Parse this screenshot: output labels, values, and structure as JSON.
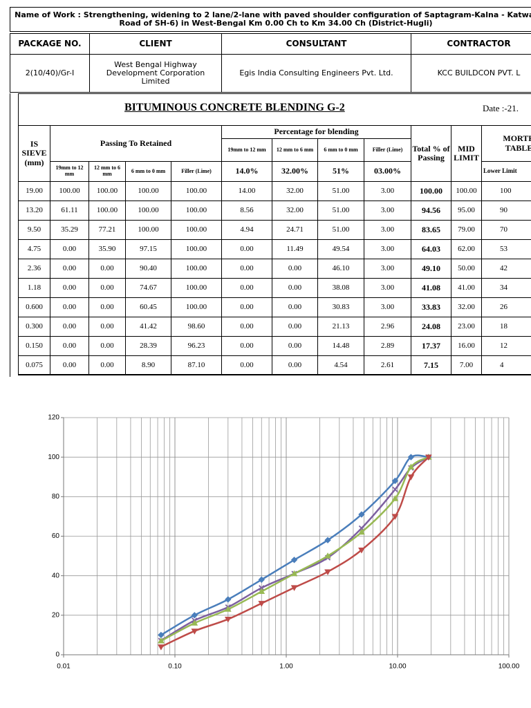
{
  "header": {
    "work": "Name of Work : Strengthening, widening to 2 lane/2-lane with paved shoulder configuration of Saptagram-Kalna - Katwa-Road of SH-6) in West-Bengal Km 0.00 Ch to Km 34.00 Ch (District-Hugli)",
    "columns": [
      "PACKAGE NO.",
      "CLIENT",
      "CONSULTANT",
      "CONTRACTOR"
    ],
    "values": [
      "2(10/40)/Gr-I",
      "West Bengal Highway Development Corporation Limited",
      "Egis India Consulting Engineers Pvt. Ltd.",
      "KCC BUILDCON PVT. L"
    ]
  },
  "table": {
    "title": "BITUMINOUS CONCRETE BLENDING G-2",
    "date": "Date :-21.",
    "head": {
      "sieve": "IS SIEVE (mm)",
      "passing": "Passing To Retained",
      "blending": "Percentage for blending",
      "total": "Total % of Passing",
      "mid": "MID LIMIT",
      "morth": "MORTH TABLE",
      "lower": "Lower Limit",
      "passing_fractions": [
        "19mm to 12 mm",
        "12 mm to 6 mm",
        "6 mm to 0 mm",
        "Filler (Lime)"
      ],
      "blend_fractions": [
        "19mm to 12 mm",
        "12 mm to 6 mm",
        "6 mm to 0 mm",
        "Filler (Lime)"
      ],
      "percents": [
        "14.0%",
        "32.00%",
        "51%",
        "03.00%"
      ]
    },
    "rows": [
      [
        "19.00",
        "100.00",
        "100.00",
        "100.00",
        "100.00",
        "14.00",
        "32.00",
        "51.00",
        "3.00",
        "100.00",
        "100.00",
        "100"
      ],
      [
        "13.20",
        "61.11",
        "100.00",
        "100.00",
        "100.00",
        "8.56",
        "32.00",
        "51.00",
        "3.00",
        "94.56",
        "95.00",
        "90"
      ],
      [
        "9.50",
        "35.29",
        "77.21",
        "100.00",
        "100.00",
        "4.94",
        "24.71",
        "51.00",
        "3.00",
        "83.65",
        "79.00",
        "70"
      ],
      [
        "4.75",
        "0.00",
        "35.90",
        "97.15",
        "100.00",
        "0.00",
        "11.49",
        "49.54",
        "3.00",
        "64.03",
        "62.00",
        "53"
      ],
      [
        "2.36",
        "0.00",
        "0.00",
        "90.40",
        "100.00",
        "0.00",
        "0.00",
        "46.10",
        "3.00",
        "49.10",
        "50.00",
        "42"
      ],
      [
        "1.18",
        "0.00",
        "0.00",
        "74.67",
        "100.00",
        "0.00",
        "0.00",
        "38.08",
        "3.00",
        "41.08",
        "41.00",
        "34"
      ],
      [
        "0.600",
        "0.00",
        "0.00",
        "60.45",
        "100.00",
        "0.00",
        "0.00",
        "30.83",
        "3.00",
        "33.83",
        "32.00",
        "26"
      ],
      [
        "0.300",
        "0.00",
        "0.00",
        "41.42",
        "98.60",
        "0.00",
        "0.00",
        "21.13",
        "2.96",
        "24.08",
        "23.00",
        "18"
      ],
      [
        "0.150",
        "0.00",
        "0.00",
        "28.39",
        "96.23",
        "0.00",
        "0.00",
        "14.48",
        "2.89",
        "17.37",
        "16.00",
        "12"
      ],
      [
        "0.075",
        "0.00",
        "0.00",
        "8.90",
        "87.10",
        "0.00",
        "0.00",
        "4.54",
        "2.61",
        "7.15",
        "7.00",
        "4"
      ]
    ]
  },
  "chart_data": {
    "type": "line",
    "xscale": "log",
    "grid": true,
    "x": [
      19,
      13.2,
      9.5,
      4.75,
      2.36,
      1.18,
      0.6,
      0.3,
      0.15,
      0.075
    ],
    "series": [
      {
        "color": "#4a7ebb",
        "marker": "diamond",
        "values": [
          100,
          100,
          88,
          71,
          58,
          48,
          38,
          28,
          20,
          10
        ]
      },
      {
        "color": "#7d60a0",
        "marker": "x",
        "values": [
          100,
          94.56,
          83.65,
          64.03,
          49.1,
          41.08,
          33.83,
          24.08,
          17.37,
          7.15
        ]
      },
      {
        "color": "#98b954",
        "marker": "triangle-up",
        "values": [
          100,
          95,
          79,
          62,
          50,
          41,
          32,
          23,
          16,
          7
        ]
      },
      {
        "color": "#be4b48",
        "marker": "triangle-down",
        "values": [
          100,
          90,
          70,
          53,
          42,
          34,
          26,
          18,
          12,
          4
        ]
      }
    ],
    "xlim": [
      0.01,
      100
    ],
    "xticks": [
      0.01,
      {
        "value": 0.1,
        "label": "0.10"
      },
      {
        "value": 1,
        "label": "1.00"
      },
      {
        "value": 10,
        "label": "10.00"
      },
      {
        "value": 100,
        "label": "100.00"
      }
    ],
    "ylim": [
      0,
      120
    ],
    "yticks": [
      0,
      20,
      40,
      60,
      80,
      100,
      120
    ]
  }
}
